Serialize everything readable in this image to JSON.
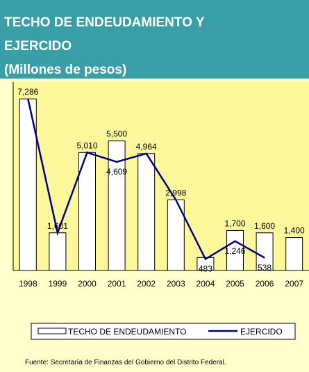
{
  "chart_data": {
    "type": "bar-line",
    "title": "TECHO DE ENDEUDAMIENTO Y EJERCIDO",
    "subtitle": "(Millones de pesos)",
    "categories": [
      "1998",
      "1999",
      "2000",
      "2001",
      "2002",
      "2003",
      "2004",
      "2005",
      "2006",
      "2007"
    ],
    "ylim": [
      0,
      8000
    ],
    "series": [
      {
        "name": "TECHO DE ENDEUDAMIENTO",
        "type": "bar",
        "color": "#ffffff",
        "values": [
          7286,
          1601,
          5010,
          5500,
          4964,
          2998,
          550,
          1700,
          1600,
          1400
        ],
        "value_labels": [
          "7,286",
          "1,601",
          "5,010",
          "5,500",
          "4,964",
          "2,998",
          null,
          "1,700",
          "1,600",
          "1,400"
        ]
      },
      {
        "name": "EJERCIDO",
        "type": "line",
        "color": "#000080",
        "values": [
          7286,
          1601,
          5010,
          4609,
          4964,
          2998,
          483,
          1246,
          538,
          null
        ],
        "value_labels": [
          null,
          null,
          null,
          "4,609",
          null,
          null,
          "483",
          "1,246",
          "538",
          null
        ]
      }
    ],
    "source": "Fuente: Secretaría de Finanzas del Gobierno del Distrito Federal."
  }
}
